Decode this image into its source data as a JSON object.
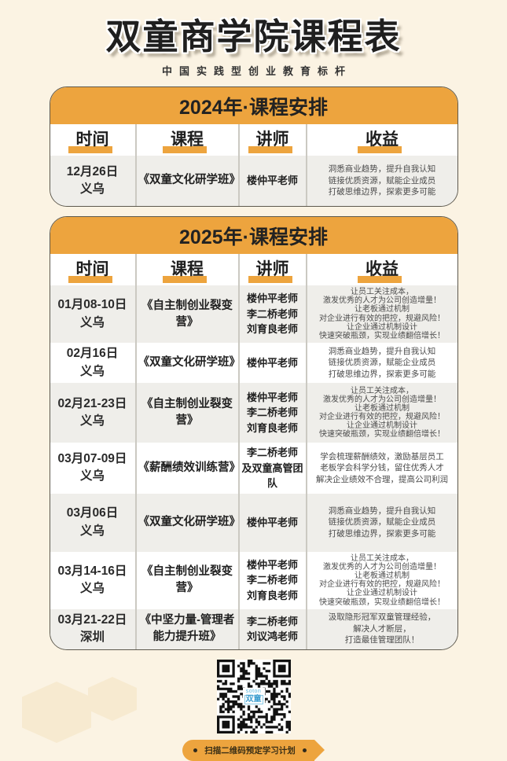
{
  "page": {
    "title": "双童商学院课程表",
    "subtitle": "中国实践型创业教育标杆"
  },
  "table": {
    "columns": [
      "时间",
      "课程",
      "讲师",
      "收益"
    ],
    "sections": [
      {
        "title": "2024年·课程安排",
        "rows": [
          {
            "date": [
              "12月26日",
              "义乌"
            ],
            "course": [
              "《双童文化研学班》"
            ],
            "lecturers": [
              "楼仲平老师"
            ],
            "benefits": [
              "洞悉商业趋势，提升自我认知",
              "链接优质资源，赋能企业成员",
              "打破思维边界，探索更多可能"
            ]
          }
        ]
      },
      {
        "title": "2025年·课程安排",
        "rows": [
          {
            "date": [
              "01月08-10日",
              "义乌"
            ],
            "course": [
              "《自主制创业裂变营》"
            ],
            "lecturers": [
              "楼仲平老师",
              "李二桥老师",
              "刘育良老师"
            ],
            "benefits": [
              "让员工关注成本，",
              "激发优秀的人才为公司创造增量！",
              "让老板通过机制",
              "对企业进行有效的把控，规避风险！",
              "让企业通过机制设计",
              "快速突破瓶颈，实现业绩翻倍增长！"
            ]
          },
          {
            "date": [
              "02月16日",
              "义乌"
            ],
            "course": [
              "《双童文化研学班》"
            ],
            "lecturers": [
              "楼仲平老师"
            ],
            "benefits": [
              "洞悉商业趋势，提升自我认知",
              "链接优质资源，赋能企业成员",
              "打破思维边界，探索更多可能"
            ]
          },
          {
            "date": [
              "02月21-23日",
              "义乌"
            ],
            "course": [
              "《自主制创业裂变营》"
            ],
            "lecturers": [
              "楼仲平老师",
              "李二桥老师",
              "刘育良老师"
            ],
            "benefits": [
              "让员工关注成本，",
              "激发优秀的人才为公司创造增量！",
              "让老板通过机制",
              "对企业进行有效的把控，规避风险！",
              "让企业通过机制设计",
              "快速突破瓶颈，实现业绩翻倍增长！"
            ]
          },
          {
            "date": [
              "03月07-09日",
              "义乌"
            ],
            "course": [
              "《薪酬绩效训练营》"
            ],
            "lecturers": [
              "李二桥老师",
              "及双童高管团队"
            ],
            "benefits": [
              "学会梳理薪酬绩效，激励基层员工",
              "老板学会科学分钱，留住优秀人才",
              "解决企业绩效不合理，提高公司利润"
            ]
          },
          {
            "date": [
              "03月06日",
              "义乌"
            ],
            "course": [
              "《双童文化研学班》"
            ],
            "lecturers": [
              "楼仲平老师"
            ],
            "benefits": [
              "洞悉商业趋势，提升自我认知",
              "链接优质资源，赋能企业成员",
              "打破思维边界，探索更多可能"
            ]
          },
          {
            "date": [
              "03月14-16日",
              "义乌"
            ],
            "course": [
              "《自主制创业裂变营》"
            ],
            "lecturers": [
              "楼仲平老师",
              "李二桥老师",
              "刘育良老师"
            ],
            "benefits": [
              "让员工关注成本，",
              "激发优秀的人才为公司创造增量！",
              "让老板通过机制",
              "对企业进行有效的把控，规避风险！",
              "让企业通过机制设计",
              "快速突破瓶颈，实现业绩翻倍增长！"
            ]
          },
          {
            "date": [
              "03月21-22日",
              "深圳"
            ],
            "course": [
              "《中坚力量-管理者",
              "能力提升班》"
            ],
            "lecturers": [
              "李二桥老师",
              "刘议鸿老师"
            ],
            "benefits": [
              "汲取隐形冠军双童管理经验，",
              "解决人才断层，",
              "打造最佳管理团队！"
            ]
          }
        ]
      }
    ]
  },
  "qr": {
    "logo_line1": "soton",
    "logo_line2": "双童"
  },
  "footer": {
    "ribbon_text": "扫描二维码预定学习计划"
  },
  "colors": {
    "accent_orange": "#EDA43E",
    "page_background": "#FBF3E3",
    "row_gray": "#EFEEEA",
    "qr_logo_blue": "#3F9FD0"
  }
}
